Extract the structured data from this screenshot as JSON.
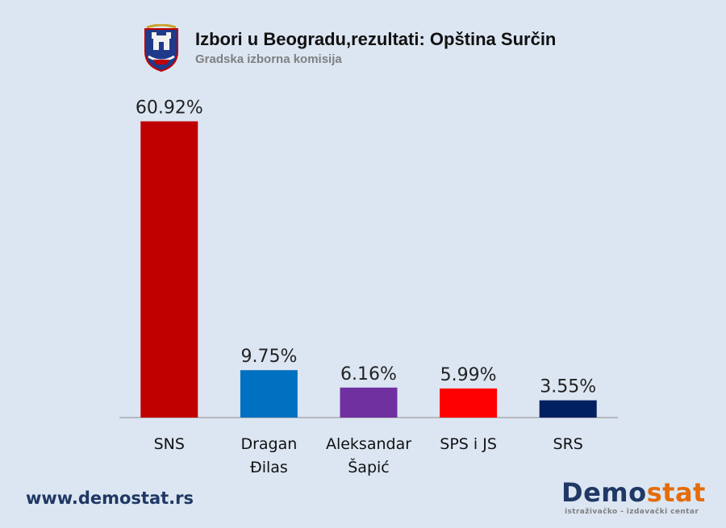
{
  "header": {
    "title": "Izbori u Beogradu,rezultati: Opština Surčin",
    "subtitle": "Gradska izborna komisija"
  },
  "footer": {
    "website": "www.demostat.rs",
    "logo_part1": "Demo",
    "logo_part2": "stat",
    "logo_tagline": "istraživačko - izdavački centar"
  },
  "colors": {
    "background": "#dce6f2",
    "logo_accent": "#e46c0a",
    "logo_main": "#1f3864"
  },
  "chart_data": {
    "type": "bar",
    "title": "Izbori u Beogradu,rezultati: Opština Surčin",
    "subtitle": "Gradska izborna komisija",
    "categories": [
      [
        "SNS"
      ],
      [
        "Dragan",
        "Đilas"
      ],
      [
        "Aleksandar",
        "Šapić"
      ],
      [
        "SPS i JS"
      ],
      [
        "SRS"
      ]
    ],
    "values": [
      60.92,
      9.75,
      6.16,
      5.99,
      3.55
    ],
    "labels": [
      "60.92%",
      "9.75%",
      "6.16%",
      "5.99%",
      "3.55%"
    ],
    "colors": [
      "#c00000",
      "#0070c0",
      "#7030a0",
      "#ff0000",
      "#002060"
    ],
    "ylim": [
      0,
      61
    ],
    "grid": false,
    "legend": "none",
    "xlabel": "",
    "ylabel": ""
  }
}
